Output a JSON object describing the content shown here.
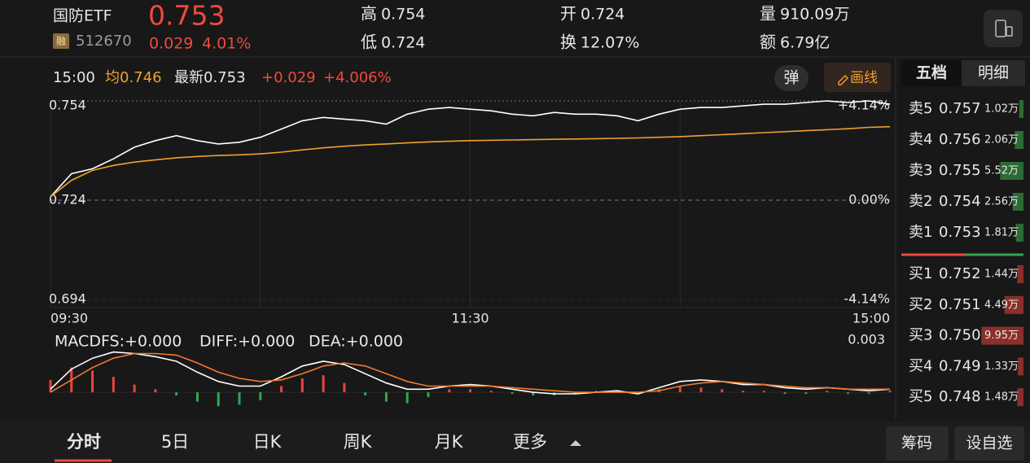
{
  "header": {
    "name": "国防ETF",
    "badge": "融",
    "code": "512670",
    "price": "0.753",
    "change": "0.029",
    "change_pct": "4.01%"
  },
  "stats": [
    {
      "label": "高",
      "value": "0.754"
    },
    {
      "label": "低",
      "value": "0.724"
    },
    {
      "label": "开",
      "value": "0.724"
    },
    {
      "label": "换",
      "value": "12.07%"
    },
    {
      "label": "量",
      "value": "910.09万"
    },
    {
      "label": "额",
      "value": "6.79亿"
    }
  ],
  "info_bar": {
    "time": "15:00",
    "avg": "均0.746",
    "latest": "最新0.753",
    "change": "+0.029",
    "change_pct": "+4.006%"
  },
  "buttons": {
    "popup": "弹",
    "draw": "画线"
  },
  "chart_data": [
    {
      "type": "line",
      "grid": true,
      "x": [
        0,
        6,
        12,
        18,
        24,
        30,
        36,
        42,
        48,
        54,
        60,
        66,
        72,
        78,
        84,
        90,
        96,
        102,
        108,
        114,
        120,
        126,
        132,
        138,
        144,
        150,
        156,
        162,
        168,
        174,
        180,
        186,
        192,
        198,
        204,
        210,
        216,
        222,
        228,
        234,
        240
      ],
      "xlim": [
        0,
        240
      ],
      "xticks": [
        {
          "value": 0,
          "label": "09:30"
        },
        {
          "value": 120,
          "label": "11:30"
        },
        {
          "value": 240,
          "label": "15:00"
        }
      ],
      "ylim": [
        0.694,
        0.754
      ],
      "yticks": [
        0.754,
        0.724,
        0.694
      ],
      "y2lim": [
        -4.14,
        4.14
      ],
      "y2ticks": [
        {
          "value": 4.14,
          "label": "+4.14%"
        },
        {
          "value": 0,
          "label": "0.00%"
        },
        {
          "value": -4.14,
          "label": "-4.14%"
        }
      ],
      "series": [
        {
          "color": "#ffffff",
          "values": [
            0.725,
            0.732,
            0.7335,
            0.7365,
            0.74,
            0.742,
            0.7435,
            0.742,
            0.741,
            0.7415,
            0.743,
            0.7455,
            0.748,
            0.749,
            0.7485,
            0.748,
            0.747,
            0.75,
            0.7515,
            0.752,
            0.7515,
            0.751,
            0.75,
            0.7495,
            0.7505,
            0.75,
            0.75,
            0.7495,
            0.748,
            0.75,
            0.7515,
            0.752,
            0.752,
            0.7525,
            0.753,
            0.753,
            0.7535,
            0.754,
            0.7535,
            0.754,
            0.753
          ]
        },
        {
          "color": "#f0a030",
          "values": [
            0.725,
            0.73,
            0.733,
            0.7345,
            0.7355,
            0.7362,
            0.7368,
            0.7372,
            0.7375,
            0.7377,
            0.738,
            0.7385,
            0.7392,
            0.7398,
            0.7403,
            0.7407,
            0.741,
            0.7413,
            0.7416,
            0.7418,
            0.742,
            0.7421,
            0.7422,
            0.7423,
            0.7424,
            0.7425,
            0.7426,
            0.7427,
            0.7428,
            0.743,
            0.7432,
            0.7435,
            0.7438,
            0.7441,
            0.7444,
            0.7447,
            0.745,
            0.7453,
            0.7456,
            0.746,
            0.7462
          ]
        }
      ]
    },
    {
      "type": "bar",
      "x": [
        0,
        6,
        12,
        18,
        24,
        30,
        36,
        42,
        48,
        54,
        60,
        66,
        72,
        78,
        84,
        90,
        96,
        102,
        108,
        114,
        120,
        126,
        132,
        138,
        144,
        150,
        156,
        162,
        168,
        174,
        180,
        186,
        192,
        198,
        204,
        210,
        216,
        222,
        228,
        234,
        240
      ],
      "xlim": [
        0,
        240
      ],
      "ylim": [
        -0.0012,
        0.003
      ],
      "yticks": [
        0.003
      ],
      "series": [
        {
          "name": "MACDFS:+0.000",
          "type": "bar",
          "color": "#e8453c",
          "neg_color": "#2fa84f",
          "values": [
            0.0008,
            0.0016,
            0.0014,
            0.001,
            0.0005,
            0.0002,
            -0.0002,
            -0.0006,
            -0.0009,
            -0.0008,
            -0.0005,
            0.0004,
            0.0009,
            0.0011,
            0.0006,
            -0.0002,
            -0.0006,
            -0.0007,
            -0.0003,
            0.0002,
            0.0002,
            0.0001,
            -0.0001,
            -0.0002,
            -0.0002,
            -0.0001,
            0.0001,
            0.0001,
            -0.0001,
            0.0002,
            0.0004,
            0.0003,
            0.0002,
            0.0001,
            0.0001,
            -0.0001,
            -0.0001,
            0.0001,
            -0.0001,
            -0.0001,
            0.0001
          ]
        },
        {
          "name": "DIFF:+0.000",
          "type": "line",
          "color": "#ffffff",
          "values": [
            0.0002,
            0.0015,
            0.0022,
            0.0026,
            0.0025,
            0.0023,
            0.002,
            0.0013,
            0.0007,
            0.0004,
            0.0004,
            0.001,
            0.0017,
            0.002,
            0.0018,
            0.0012,
            0.0006,
            0.0002,
            0.0002,
            0.0004,
            0.0005,
            0.0004,
            0.0002,
            0,
            -0.0001,
            -0.0001,
            0,
            0.0001,
            -0.0001,
            0.0003,
            0.0007,
            0.0008,
            0.0007,
            0.0005,
            0.0005,
            0.0003,
            0.0002,
            0.0003,
            0.0002,
            0.0001,
            0.0002
          ]
        },
        {
          "name": "DEA:+0.000",
          "type": "line",
          "color": "#f07a30",
          "values": [
            0,
            0.0008,
            0.0016,
            0.0022,
            0.0025,
            0.0025,
            0.0024,
            0.0019,
            0.0013,
            0.0009,
            0.0007,
            0.0008,
            0.0012,
            0.0017,
            0.0019,
            0.0017,
            0.0012,
            0.0007,
            0.0004,
            0.0004,
            0.0004,
            0.0004,
            0.0003,
            0.0002,
            0.0001,
            0,
            0,
            0,
            0,
            0.0001,
            0.0004,
            0.0006,
            0.0007,
            0.0006,
            0.0005,
            0.0004,
            0.0003,
            0.0003,
            0.0002,
            0.0002,
            0.0002
          ]
        }
      ]
    }
  ],
  "order_book": {
    "tabs": [
      "五档",
      "明细"
    ],
    "asks": [
      {
        "label": "卖5",
        "price": "0.757",
        "volume": 1.02,
        "volume_label": "1.02万"
      },
      {
        "label": "卖4",
        "price": "0.756",
        "volume": 2.06,
        "volume_label": "2.06万"
      },
      {
        "label": "卖3",
        "price": "0.755",
        "volume": 5.52,
        "volume_label": "5.52万"
      },
      {
        "label": "卖2",
        "price": "0.754",
        "volume": 2.56,
        "volume_label": "2.56万"
      },
      {
        "label": "卖1",
        "price": "0.753",
        "volume": 1.81,
        "volume_label": "1.81万"
      }
    ],
    "bids": [
      {
        "label": "买1",
        "price": "0.752",
        "volume": 1.44,
        "volume_label": "1.44万"
      },
      {
        "label": "买2",
        "price": "0.751",
        "volume": 4.49,
        "volume_label": "4.49万"
      },
      {
        "label": "买3",
        "price": "0.750",
        "volume": 9.95,
        "volume_label": "9.95万"
      },
      {
        "label": "买4",
        "price": "0.749",
        "volume": 1.33,
        "volume_label": "1.33万"
      },
      {
        "label": "买5",
        "price": "0.748",
        "volume": 1.48,
        "volume_label": "1.48万"
      }
    ]
  },
  "bottom_tabs": [
    "分时",
    "5日",
    "日K",
    "周K",
    "月K",
    "更多"
  ],
  "actions": [
    "筹码",
    "设自选"
  ]
}
